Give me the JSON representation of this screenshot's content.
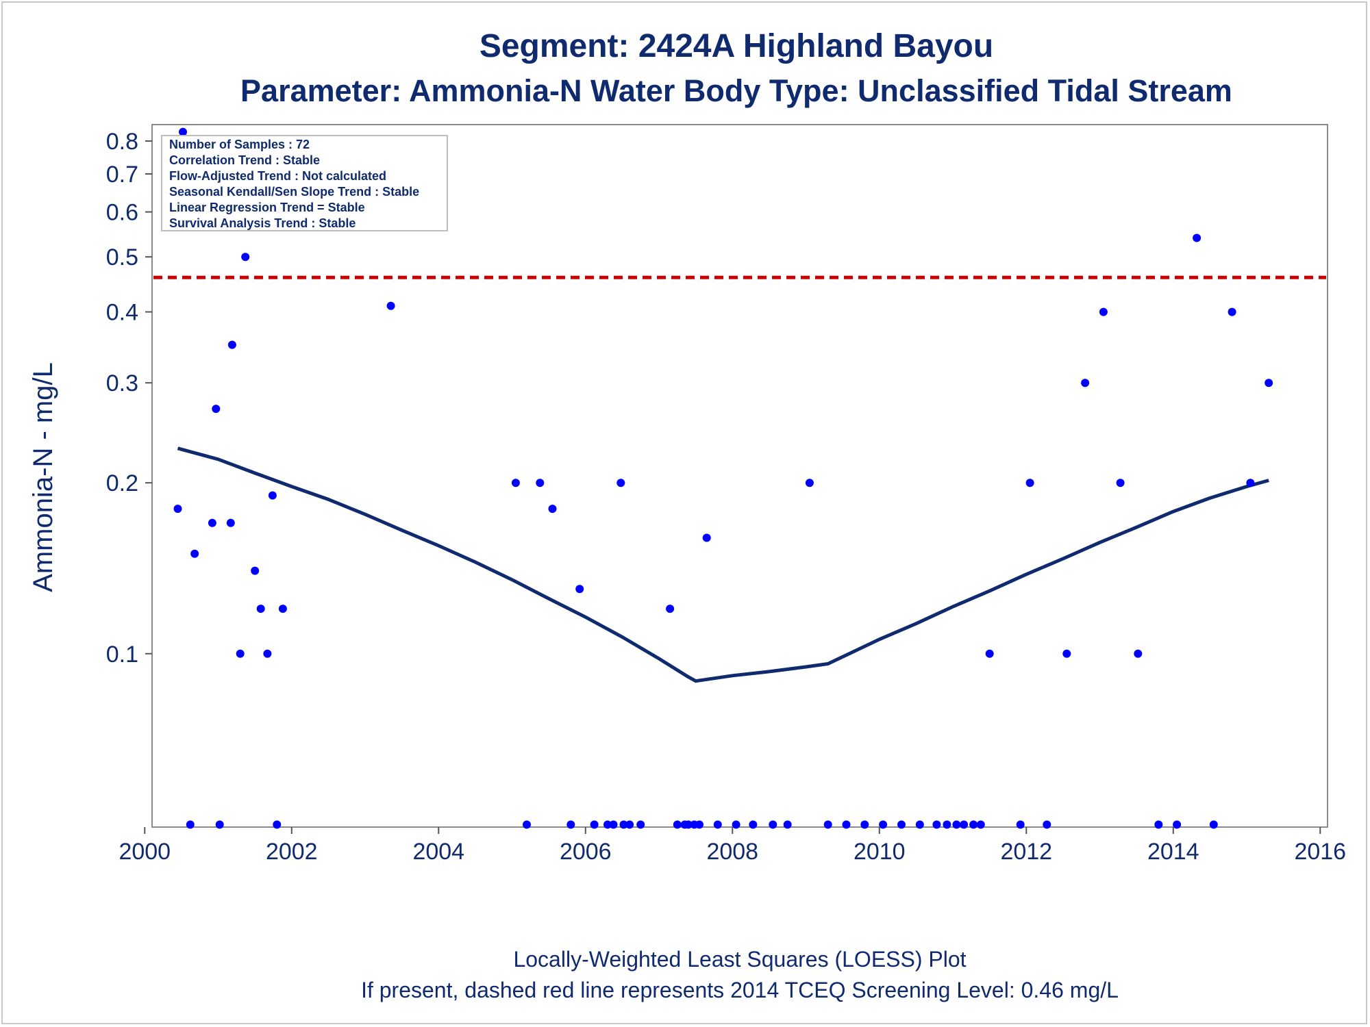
{
  "chart_data": {
    "type": "scatter",
    "title": "Segment: 2424A  Highland Bayou",
    "subtitle": "Parameter: Ammonia-N   Water Body Type: Unclassified Tidal Stream",
    "xlabel": "",
    "ylabel": "Ammonia-N - mg/L",
    "y_scale": "log",
    "xlim": [
      2000,
      2016
    ],
    "ylim": [
      0.05,
      0.85
    ],
    "x_ticks": [
      "2000",
      "2002",
      "2004",
      "2006",
      "2008",
      "2010",
      "2012",
      "2014",
      "2016"
    ],
    "y_ticks": [
      {
        "value": 0.1,
        "label": "0.1"
      },
      {
        "value": 0.2,
        "label": "0.2"
      },
      {
        "value": 0.3,
        "label": "0.3"
      },
      {
        "value": 0.4,
        "label": "0.4"
      },
      {
        "value": 0.5,
        "label": "0.5"
      },
      {
        "value": 0.6,
        "label": "0.6"
      },
      {
        "value": 0.7,
        "label": "0.7"
      },
      {
        "value": 0.8,
        "label": "0.8"
      }
    ],
    "screening_level": {
      "value": 0.46,
      "color": "#cc0000",
      "style": "dashed"
    },
    "info_box": [
      "Number of Samples : 72",
      "Correlation Trend : Stable",
      "Flow-Adjusted Trend : Not calculated",
      "Seasonal Kendall/Sen Slope Trend : Stable",
      "Linear Regression Trend = Stable",
      "Survival Analysis Trend : Stable"
    ],
    "points": [
      [
        2000.45,
        0.18
      ],
      [
        2000.52,
        0.83
      ],
      [
        2000.62,
        0.05
      ],
      [
        2000.68,
        0.15
      ],
      [
        2000.92,
        0.17
      ],
      [
        2000.97,
        0.27
      ],
      [
        2001.02,
        0.05
      ],
      [
        2001.17,
        0.17
      ],
      [
        2001.19,
        0.35
      ],
      [
        2001.3,
        0.1
      ],
      [
        2001.37,
        0.5
      ],
      [
        2001.5,
        0.14
      ],
      [
        2001.58,
        0.12
      ],
      [
        2001.67,
        0.1
      ],
      [
        2001.74,
        0.19
      ],
      [
        2001.8,
        0.05
      ],
      [
        2001.88,
        0.12
      ],
      [
        2003.35,
        0.41
      ],
      [
        2005.05,
        0.2
      ],
      [
        2005.2,
        0.05
      ],
      [
        2005.38,
        0.2
      ],
      [
        2005.55,
        0.18
      ],
      [
        2005.8,
        0.05
      ],
      [
        2005.92,
        0.13
      ],
      [
        2006.12,
        0.05
      ],
      [
        2006.3,
        0.05
      ],
      [
        2006.38,
        0.05
      ],
      [
        2006.48,
        0.2
      ],
      [
        2006.52,
        0.05
      ],
      [
        2006.6,
        0.05
      ],
      [
        2006.75,
        0.05
      ],
      [
        2007.15,
        0.12
      ],
      [
        2007.25,
        0.05
      ],
      [
        2007.35,
        0.05
      ],
      [
        2007.4,
        0.05
      ],
      [
        2007.48,
        0.05
      ],
      [
        2007.55,
        0.05
      ],
      [
        2007.65,
        0.16
      ],
      [
        2007.8,
        0.05
      ],
      [
        2008.05,
        0.05
      ],
      [
        2008.28,
        0.05
      ],
      [
        2008.55,
        0.05
      ],
      [
        2008.75,
        0.05
      ],
      [
        2009.05,
        0.2
      ],
      [
        2009.3,
        0.05
      ],
      [
        2009.55,
        0.05
      ],
      [
        2009.8,
        0.05
      ],
      [
        2010.05,
        0.05
      ],
      [
        2010.3,
        0.05
      ],
      [
        2010.55,
        0.05
      ],
      [
        2010.78,
        0.05
      ],
      [
        2010.92,
        0.05
      ],
      [
        2011.05,
        0.05
      ],
      [
        2011.15,
        0.05
      ],
      [
        2011.28,
        0.05
      ],
      [
        2011.38,
        0.05
      ],
      [
        2011.5,
        0.1
      ],
      [
        2011.92,
        0.05
      ],
      [
        2012.05,
        0.2
      ],
      [
        2012.28,
        0.05
      ],
      [
        2012.55,
        0.1
      ],
      [
        2012.8,
        0.3
      ],
      [
        2013.05,
        0.4
      ],
      [
        2013.28,
        0.2
      ],
      [
        2013.52,
        0.1
      ],
      [
        2013.8,
        0.05
      ],
      [
        2014.05,
        0.05
      ],
      [
        2014.32,
        0.54
      ],
      [
        2014.55,
        0.05
      ],
      [
        2014.8,
        0.4
      ],
      [
        2015.05,
        0.2
      ],
      [
        2015.3,
        0.3
      ]
    ],
    "loess": [
      [
        2000.45,
        0.23
      ],
      [
        2001.0,
        0.22
      ],
      [
        2001.5,
        0.208
      ],
      [
        2002.0,
        0.197
      ],
      [
        2002.5,
        0.187
      ],
      [
        2003.0,
        0.176
      ],
      [
        2003.5,
        0.165
      ],
      [
        2004.0,
        0.155
      ],
      [
        2004.5,
        0.145
      ],
      [
        2005.0,
        0.135
      ],
      [
        2005.5,
        0.125
      ],
      [
        2006.0,
        0.116
      ],
      [
        2006.5,
        0.107
      ],
      [
        2007.0,
        0.098
      ],
      [
        2007.4,
        0.091
      ],
      [
        2007.5,
        0.0895
      ],
      [
        2008.0,
        0.0915
      ],
      [
        2008.5,
        0.093
      ],
      [
        2009.0,
        0.0948
      ],
      [
        2009.3,
        0.096
      ],
      [
        2010.0,
        0.106
      ],
      [
        2010.5,
        0.113
      ],
      [
        2011.0,
        0.121
      ],
      [
        2011.5,
        0.129
      ],
      [
        2012.0,
        0.138
      ],
      [
        2012.5,
        0.147
      ],
      [
        2013.0,
        0.157
      ],
      [
        2013.5,
        0.167
      ],
      [
        2014.0,
        0.178
      ],
      [
        2014.5,
        0.188
      ],
      [
        2015.0,
        0.197
      ],
      [
        2015.3,
        0.202
      ]
    ],
    "footnote1": "Locally-Weighted Least Squares (LOESS) Plot",
    "footnote2": "If present, dashed red line represents 2014 TCEQ Screening Level: 0.46 mg/L",
    "colors": {
      "points": "#0000ff",
      "loess": "#0f2a6e",
      "screening": "#cc0000",
      "text": "#0f2a6e"
    }
  }
}
